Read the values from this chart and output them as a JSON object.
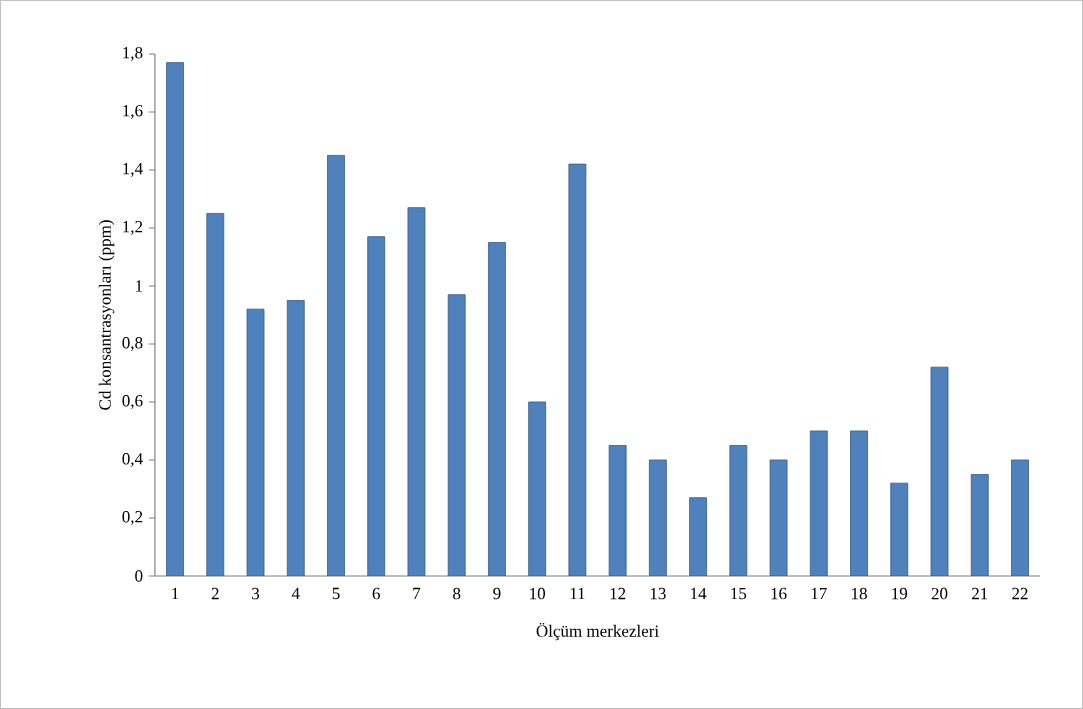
{
  "chart_data": {
    "type": "bar",
    "xlabel": "Ölçüm merkezleri",
    "ylabel": "Cd konsantrasyonları (ppm)",
    "categories": [
      "1",
      "2",
      "3",
      "4",
      "5",
      "6",
      "7",
      "8",
      "9",
      "10",
      "11",
      "12",
      "13",
      "14",
      "15",
      "16",
      "17",
      "18",
      "19",
      "20",
      "21",
      "22"
    ],
    "values": [
      1.77,
      1.25,
      0.92,
      0.95,
      1.45,
      1.17,
      1.27,
      0.97,
      1.15,
      0.6,
      1.42,
      0.45,
      0.4,
      0.27,
      0.45,
      0.4,
      0.5,
      0.5,
      0.32,
      0.72,
      0.35,
      0.4
    ],
    "color": "#4f81bd",
    "ylim": [
      0,
      1.8
    ],
    "yticks": [
      0,
      {
        "value": 0.2,
        "label": "0,2"
      },
      {
        "value": 0.4,
        "label": "0,4"
      },
      {
        "value": 0.6,
        "label": "0,6"
      },
      {
        "value": 0.8,
        "label": "0,8"
      },
      1,
      {
        "value": 1.2,
        "label": "1,2"
      },
      {
        "value": 1.4,
        "label": "1,4"
      },
      {
        "value": 1.6,
        "label": "1,6"
      },
      {
        "value": 1.8,
        "label": "1,8"
      }
    ],
    "grid": false
  }
}
